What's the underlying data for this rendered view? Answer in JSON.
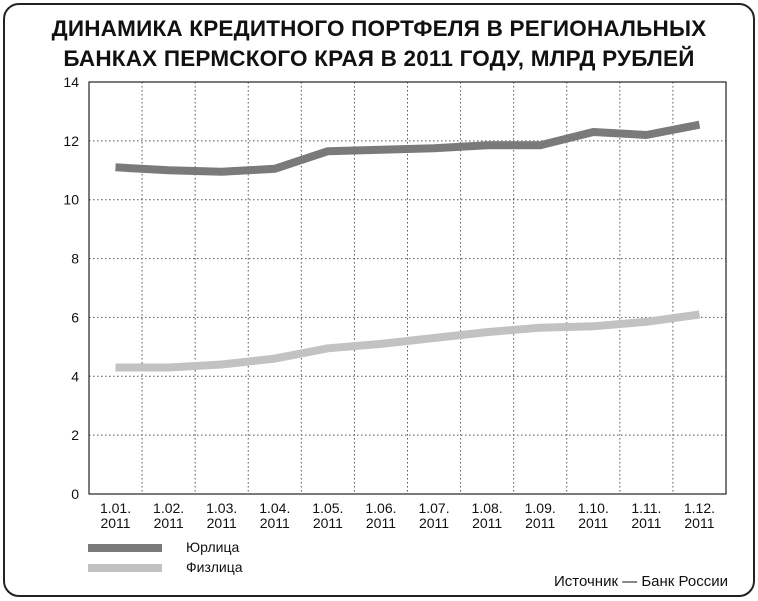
{
  "chart_data": {
    "type": "line",
    "title_lines": [
      "ДИНАМИКА КРЕДИТНОГО ПОРТФЕЛЯ В РЕГИОНАЛЬНЫХ",
      "БАНКАХ ПЕРМСКОГО КРАЯ В 2011 ГОДУ, МЛРД РУБЛЕЙ"
    ],
    "categories": [
      {
        "date": "1.01.",
        "year": "2011"
      },
      {
        "date": "1.02.",
        "year": "2011"
      },
      {
        "date": "1.03.",
        "year": "2011"
      },
      {
        "date": "1.04.",
        "year": "2011"
      },
      {
        "date": "1.05.",
        "year": "2011"
      },
      {
        "date": "1.06.",
        "year": "2011"
      },
      {
        "date": "1.07.",
        "year": "2011"
      },
      {
        "date": "1.08.",
        "year": "2011"
      },
      {
        "date": "1.09.",
        "year": "2011"
      },
      {
        "date": "1.10.",
        "year": "2011"
      },
      {
        "date": "1.11.",
        "year": "2011"
      },
      {
        "date": "1.12.",
        "year": "2011"
      }
    ],
    "series": [
      {
        "name": "Юрлица",
        "color": "#7a7a7a",
        "values": [
          11.1,
          11.0,
          10.95,
          11.05,
          11.65,
          11.7,
          11.75,
          11.85,
          11.85,
          12.3,
          12.2,
          12.55
        ]
      },
      {
        "name": "Физлица",
        "color": "#c2c2c2",
        "values": [
          4.3,
          4.3,
          4.4,
          4.6,
          4.95,
          5.1,
          5.3,
          5.5,
          5.65,
          5.7,
          5.85,
          6.1
        ]
      }
    ],
    "yticks": [
      "0",
      "2",
      "4",
      "6",
      "8",
      "10",
      "12",
      "14"
    ],
    "ylim": [
      0,
      14
    ],
    "grid": true,
    "grid_style": "dotted",
    "legend_position": "bottom-left"
  },
  "source": "Источник — Банк России"
}
